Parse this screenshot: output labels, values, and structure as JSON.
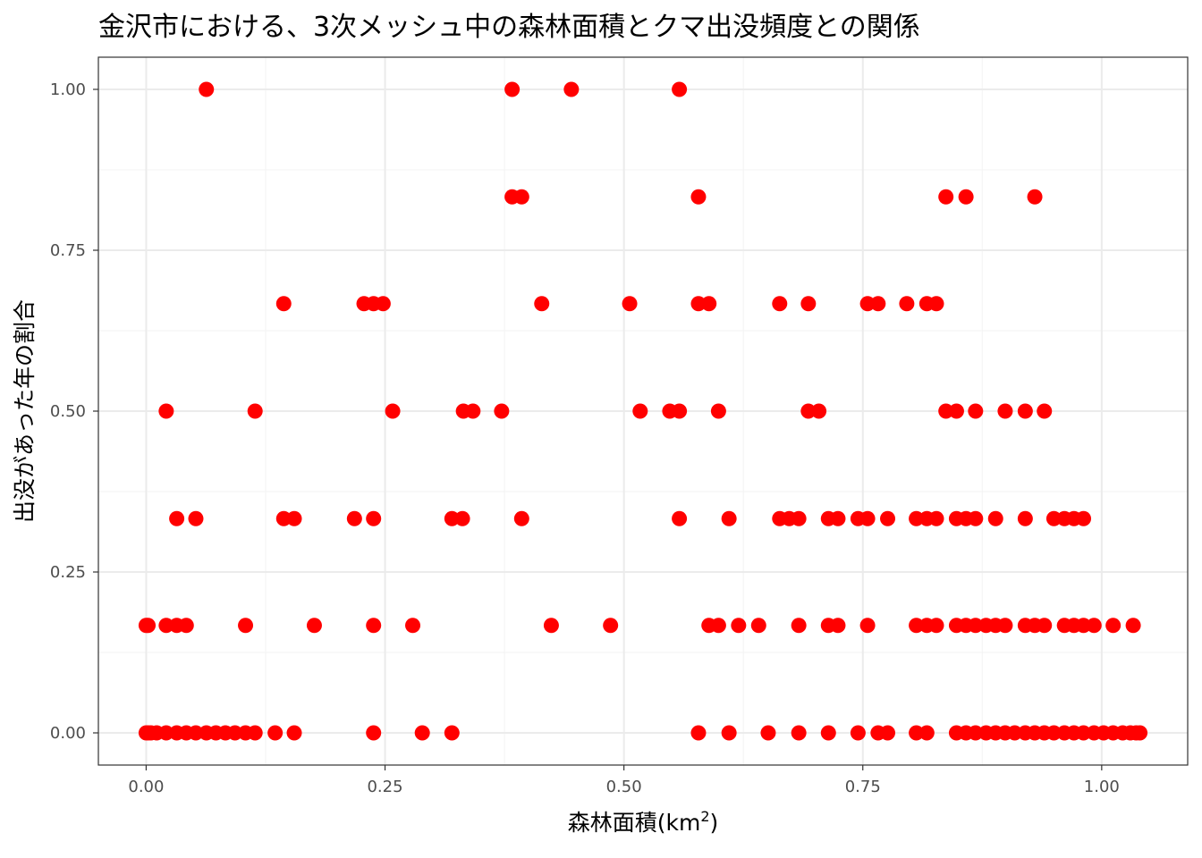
{
  "chart_data": {
    "type": "scatter",
    "title": "金沢市における、3次メッシュ中の森林面積とクマ出没頻度との関係",
    "xlabel": "森林面積(km",
    "xlabel_sup": "2",
    "xlabel_suffix": ")",
    "ylabel": "出没があった年の割合",
    "xlim": [
      -0.05,
      1.09
    ],
    "ylim": [
      -0.05,
      1.05
    ],
    "x_ticks": [
      0.0,
      0.25,
      0.5,
      0.75,
      1.0
    ],
    "x_tick_labels": [
      "0.00",
      "0.25",
      "0.50",
      "0.75",
      "1.00"
    ],
    "y_ticks": [
      0.0,
      0.25,
      0.5,
      0.75,
      1.0
    ],
    "y_tick_labels": [
      "0.00",
      "0.25",
      "0.50",
      "0.75",
      "1.00"
    ],
    "grid": true,
    "point_color": "#ff0000",
    "points": [
      {
        "x": 0.063,
        "y": 1.0
      },
      {
        "x": 0.383,
        "y": 1.0
      },
      {
        "x": 0.445,
        "y": 1.0
      },
      {
        "x": 0.558,
        "y": 1.0
      },
      {
        "x": 0.383,
        "y": 0.833
      },
      {
        "x": 0.393,
        "y": 0.833
      },
      {
        "x": 0.578,
        "y": 0.833
      },
      {
        "x": 0.837,
        "y": 0.833
      },
      {
        "x": 0.858,
        "y": 0.833
      },
      {
        "x": 0.93,
        "y": 0.833
      },
      {
        "x": 0.144,
        "y": 0.667
      },
      {
        "x": 0.228,
        "y": 0.667
      },
      {
        "x": 0.238,
        "y": 0.667
      },
      {
        "x": 0.248,
        "y": 0.667
      },
      {
        "x": 0.414,
        "y": 0.667
      },
      {
        "x": 0.506,
        "y": 0.667
      },
      {
        "x": 0.578,
        "y": 0.667
      },
      {
        "x": 0.589,
        "y": 0.667
      },
      {
        "x": 0.663,
        "y": 0.667
      },
      {
        "x": 0.693,
        "y": 0.667
      },
      {
        "x": 0.755,
        "y": 0.667
      },
      {
        "x": 0.766,
        "y": 0.667
      },
      {
        "x": 0.796,
        "y": 0.667
      },
      {
        "x": 0.817,
        "y": 0.667
      },
      {
        "x": 0.827,
        "y": 0.667
      },
      {
        "x": 0.021,
        "y": 0.5
      },
      {
        "x": 0.114,
        "y": 0.5
      },
      {
        "x": 0.258,
        "y": 0.5
      },
      {
        "x": 0.332,
        "y": 0.5
      },
      {
        "x": 0.342,
        "y": 0.5
      },
      {
        "x": 0.372,
        "y": 0.5
      },
      {
        "x": 0.517,
        "y": 0.5
      },
      {
        "x": 0.548,
        "y": 0.5
      },
      {
        "x": 0.558,
        "y": 0.5
      },
      {
        "x": 0.599,
        "y": 0.5
      },
      {
        "x": 0.693,
        "y": 0.5
      },
      {
        "x": 0.704,
        "y": 0.5
      },
      {
        "x": 0.837,
        "y": 0.5
      },
      {
        "x": 0.848,
        "y": 0.5
      },
      {
        "x": 0.868,
        "y": 0.5
      },
      {
        "x": 0.899,
        "y": 0.5
      },
      {
        "x": 0.92,
        "y": 0.5
      },
      {
        "x": 0.94,
        "y": 0.5
      },
      {
        "x": 0.032,
        "y": 0.333
      },
      {
        "x": 0.052,
        "y": 0.333
      },
      {
        "x": 0.144,
        "y": 0.333
      },
      {
        "x": 0.155,
        "y": 0.333
      },
      {
        "x": 0.218,
        "y": 0.333
      },
      {
        "x": 0.238,
        "y": 0.333
      },
      {
        "x": 0.32,
        "y": 0.333
      },
      {
        "x": 0.331,
        "y": 0.333
      },
      {
        "x": 0.393,
        "y": 0.333
      },
      {
        "x": 0.558,
        "y": 0.333
      },
      {
        "x": 0.61,
        "y": 0.333
      },
      {
        "x": 0.663,
        "y": 0.333
      },
      {
        "x": 0.673,
        "y": 0.333
      },
      {
        "x": 0.683,
        "y": 0.333
      },
      {
        "x": 0.714,
        "y": 0.333
      },
      {
        "x": 0.724,
        "y": 0.333
      },
      {
        "x": 0.745,
        "y": 0.333
      },
      {
        "x": 0.755,
        "y": 0.333
      },
      {
        "x": 0.776,
        "y": 0.333
      },
      {
        "x": 0.806,
        "y": 0.333
      },
      {
        "x": 0.817,
        "y": 0.333
      },
      {
        "x": 0.827,
        "y": 0.333
      },
      {
        "x": 0.848,
        "y": 0.333
      },
      {
        "x": 0.858,
        "y": 0.333
      },
      {
        "x": 0.868,
        "y": 0.333
      },
      {
        "x": 0.889,
        "y": 0.333
      },
      {
        "x": 0.92,
        "y": 0.333
      },
      {
        "x": 0.95,
        "y": 0.333
      },
      {
        "x": 0.961,
        "y": 0.333
      },
      {
        "x": 0.971,
        "y": 0.333
      },
      {
        "x": 0.981,
        "y": 0.333
      },
      {
        "x": 0.0,
        "y": 0.167
      },
      {
        "x": 0.002,
        "y": 0.167
      },
      {
        "x": 0.021,
        "y": 0.167
      },
      {
        "x": 0.032,
        "y": 0.167
      },
      {
        "x": 0.042,
        "y": 0.167
      },
      {
        "x": 0.104,
        "y": 0.167
      },
      {
        "x": 0.176,
        "y": 0.167
      },
      {
        "x": 0.238,
        "y": 0.167
      },
      {
        "x": 0.279,
        "y": 0.167
      },
      {
        "x": 0.424,
        "y": 0.167
      },
      {
        "x": 0.486,
        "y": 0.167
      },
      {
        "x": 0.589,
        "y": 0.167
      },
      {
        "x": 0.599,
        "y": 0.167
      },
      {
        "x": 0.62,
        "y": 0.167
      },
      {
        "x": 0.641,
        "y": 0.167
      },
      {
        "x": 0.683,
        "y": 0.167
      },
      {
        "x": 0.714,
        "y": 0.167
      },
      {
        "x": 0.724,
        "y": 0.167
      },
      {
        "x": 0.755,
        "y": 0.167
      },
      {
        "x": 0.806,
        "y": 0.167
      },
      {
        "x": 0.817,
        "y": 0.167
      },
      {
        "x": 0.827,
        "y": 0.167
      },
      {
        "x": 0.848,
        "y": 0.167
      },
      {
        "x": 0.858,
        "y": 0.167
      },
      {
        "x": 0.868,
        "y": 0.167
      },
      {
        "x": 0.879,
        "y": 0.167
      },
      {
        "x": 0.889,
        "y": 0.167
      },
      {
        "x": 0.899,
        "y": 0.167
      },
      {
        "x": 0.92,
        "y": 0.167
      },
      {
        "x": 0.93,
        "y": 0.167
      },
      {
        "x": 0.94,
        "y": 0.167
      },
      {
        "x": 0.961,
        "y": 0.167
      },
      {
        "x": 0.971,
        "y": 0.167
      },
      {
        "x": 0.981,
        "y": 0.167
      },
      {
        "x": 0.992,
        "y": 0.167
      },
      {
        "x": 1.012,
        "y": 0.167
      },
      {
        "x": 1.033,
        "y": 0.167
      },
      {
        "x": 0.0,
        "y": 0.0
      },
      {
        "x": 0.002,
        "y": 0.0
      },
      {
        "x": 0.005,
        "y": 0.0
      },
      {
        "x": 0.011,
        "y": 0.0
      },
      {
        "x": 0.021,
        "y": 0.0
      },
      {
        "x": 0.032,
        "y": 0.0
      },
      {
        "x": 0.042,
        "y": 0.0
      },
      {
        "x": 0.052,
        "y": 0.0
      },
      {
        "x": 0.063,
        "y": 0.0
      },
      {
        "x": 0.073,
        "y": 0.0
      },
      {
        "x": 0.083,
        "y": 0.0
      },
      {
        "x": 0.093,
        "y": 0.0
      },
      {
        "x": 0.104,
        "y": 0.0
      },
      {
        "x": 0.114,
        "y": 0.0
      },
      {
        "x": 0.135,
        "y": 0.0
      },
      {
        "x": 0.155,
        "y": 0.0
      },
      {
        "x": 0.238,
        "y": 0.0
      },
      {
        "x": 0.289,
        "y": 0.0
      },
      {
        "x": 0.32,
        "y": 0.0
      },
      {
        "x": 0.578,
        "y": 0.0
      },
      {
        "x": 0.61,
        "y": 0.0
      },
      {
        "x": 0.651,
        "y": 0.0
      },
      {
        "x": 0.683,
        "y": 0.0
      },
      {
        "x": 0.714,
        "y": 0.0
      },
      {
        "x": 0.745,
        "y": 0.0
      },
      {
        "x": 0.766,
        "y": 0.0
      },
      {
        "x": 0.776,
        "y": 0.0
      },
      {
        "x": 0.806,
        "y": 0.0
      },
      {
        "x": 0.817,
        "y": 0.0
      },
      {
        "x": 0.848,
        "y": 0.0
      },
      {
        "x": 0.858,
        "y": 0.0
      },
      {
        "x": 0.868,
        "y": 0.0
      },
      {
        "x": 0.879,
        "y": 0.0
      },
      {
        "x": 0.889,
        "y": 0.0
      },
      {
        "x": 0.899,
        "y": 0.0
      },
      {
        "x": 0.909,
        "y": 0.0
      },
      {
        "x": 0.92,
        "y": 0.0
      },
      {
        "x": 0.93,
        "y": 0.0
      },
      {
        "x": 0.94,
        "y": 0.0
      },
      {
        "x": 0.95,
        "y": 0.0
      },
      {
        "x": 0.961,
        "y": 0.0
      },
      {
        "x": 0.971,
        "y": 0.0
      },
      {
        "x": 0.981,
        "y": 0.0
      },
      {
        "x": 0.992,
        "y": 0.0
      },
      {
        "x": 1.002,
        "y": 0.0
      },
      {
        "x": 1.012,
        "y": 0.0
      },
      {
        "x": 1.022,
        "y": 0.0
      },
      {
        "x": 1.03,
        "y": 0.0
      },
      {
        "x": 1.036,
        "y": 0.0
      },
      {
        "x": 1.04,
        "y": 0.0
      }
    ]
  }
}
